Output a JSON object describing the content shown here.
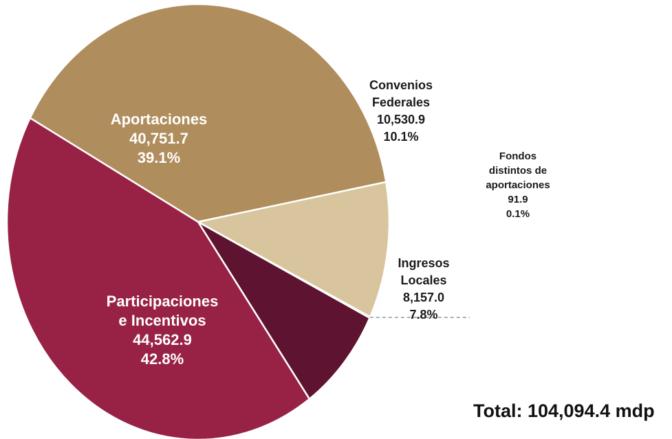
{
  "chart_data": {
    "type": "pie",
    "slices": [
      {
        "name": "Aportaciones",
        "name_lines": [
          "Aportaciones"
        ],
        "value": 40751.7,
        "value_label": "40,751.7",
        "percent": 39.1,
        "percent_label": "39.1%",
        "color": "#B08D5D",
        "label_color": "#ffffff"
      },
      {
        "name": "Convenios Federales",
        "name_lines": [
          "Convenios",
          "Federales"
        ],
        "value": 10530.9,
        "value_label": "10,530.9",
        "percent": 10.1,
        "percent_label": "10.1%",
        "color": "#D8C59D",
        "label_color": "#1a1a1a"
      },
      {
        "name": "Fondos distintos de aportaciones",
        "name_lines": [
          "Fondos",
          "distintos de",
          "aportaciones"
        ],
        "value": 91.9,
        "value_label": "91.9",
        "percent": 0.1,
        "percent_label": "0.1%",
        "color": "#5C7A8C",
        "label_color": "#1a1a1a"
      },
      {
        "name": "Ingresos Locales",
        "name_lines": [
          "Ingresos",
          "Locales"
        ],
        "value": 8157.0,
        "value_label": "8,157.0",
        "percent": 7.8,
        "percent_label": "7.8%",
        "color": "#5E1330",
        "label_color": "#1a1a1a"
      },
      {
        "name": "Participaciones e Incentivos",
        "name_lines": [
          "Participaciones",
          "e Incentivos"
        ],
        "value": 44562.9,
        "value_label": "44,562.9",
        "percent": 42.8,
        "percent_label": "42.8%",
        "color": "#982245",
        "label_color": "#ffffff"
      }
    ],
    "total_label": "Total: 104,094.4 mdp"
  }
}
